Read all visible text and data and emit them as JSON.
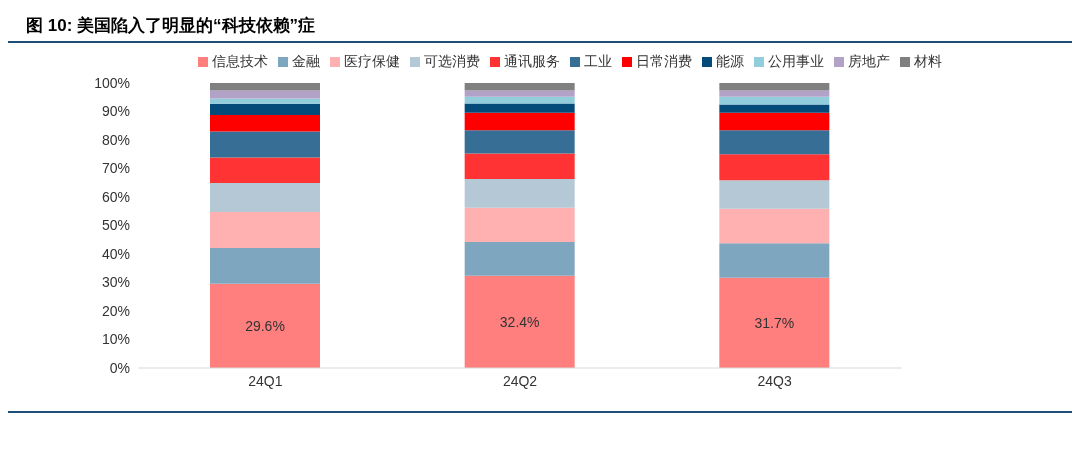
{
  "chart_data": {
    "type": "bar",
    "title": "图 10: 美国陷入了明显的“科技依赖”症",
    "categories": [
      "24Q1",
      "24Q2",
      "24Q3"
    ],
    "stacked": true,
    "ylim": [
      0,
      100
    ],
    "yticks": [
      {
        "value": 0,
        "label": "0%"
      },
      {
        "value": 10,
        "label": "10%"
      },
      {
        "value": 20,
        "label": "20%"
      },
      {
        "value": 30,
        "label": "30%"
      },
      {
        "value": 40,
        "label": "40%"
      },
      {
        "value": 50,
        "label": "50%"
      },
      {
        "value": 60,
        "label": "60%"
      },
      {
        "value": 70,
        "label": "70%"
      },
      {
        "value": 80,
        "label": "80%"
      },
      {
        "value": 90,
        "label": "90%"
      },
      {
        "value": 100,
        "label": "100%"
      }
    ],
    "legend": "top",
    "grid": false,
    "series": [
      {
        "name": "信息技术",
        "color": "#ff7f7f",
        "values": [
          29.6,
          32.4,
          31.7
        ],
        "value_labels": [
          "29.6%",
          "32.4%",
          "31.7%"
        ]
      },
      {
        "name": "金融",
        "color": "#7fa6bf",
        "values": [
          12.5,
          11.8,
          12.1
        ]
      },
      {
        "name": "医疗保健",
        "color": "#ffb0b0",
        "values": [
          12.6,
          12.0,
          12.1
        ]
      },
      {
        "name": "可选消费",
        "color": "#b4c8d6",
        "values": [
          10.2,
          10.1,
          10.0
        ]
      },
      {
        "name": "通讯服务",
        "color": "#ff3333",
        "values": [
          9.0,
          9.0,
          9.1
        ]
      },
      {
        "name": "工业",
        "color": "#376e96",
        "values": [
          9.1,
          8.1,
          8.4
        ]
      },
      {
        "name": "日常消费",
        "color": "#ff0000",
        "values": [
          5.8,
          6.2,
          6.2
        ]
      },
      {
        "name": "能源",
        "color": "#044b7a",
        "values": [
          3.9,
          3.2,
          2.9
        ]
      },
      {
        "name": "公用事业",
        "color": "#92cddc",
        "values": [
          1.9,
          2.4,
          2.7
        ]
      },
      {
        "name": "房地产",
        "color": "#b3a2c7",
        "values": [
          2.8,
          2.2,
          2.2
        ]
      },
      {
        "name": "材料",
        "color": "#808080",
        "values": [
          2.6,
          2.6,
          2.6
        ]
      }
    ]
  }
}
